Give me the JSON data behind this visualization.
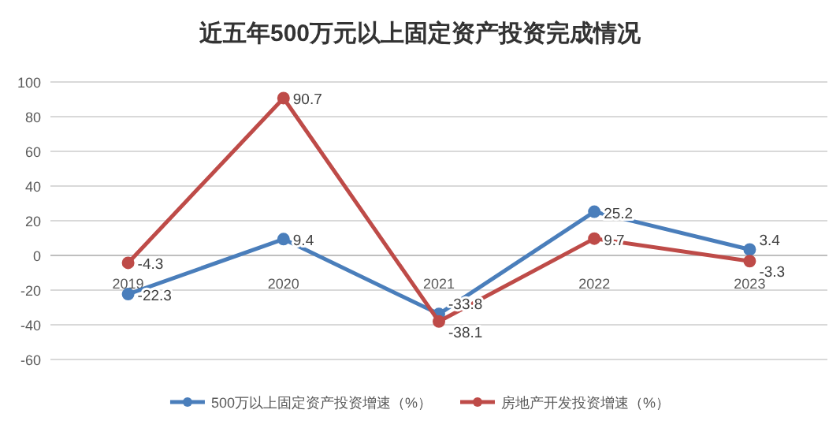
{
  "chart_data": {
    "type": "line",
    "title": "近五年500万元以上固定资产投资完成情况",
    "categories": [
      "2019",
      "2020",
      "2021",
      "2022",
      "2023"
    ],
    "series": [
      {
        "name": "500万以上固定资产投资增速（%）",
        "color": "#4a7ebb",
        "values": [
          -22.3,
          9.4,
          -33.8,
          25.2,
          3.4
        ]
      },
      {
        "name": "房地产开发投资增速（%）",
        "color": "#be4b48",
        "values": [
          -4.3,
          90.7,
          -38.1,
          9.7,
          -3.3
        ]
      }
    ],
    "ylim": [
      -60,
      100
    ],
    "yticks": [
      -60,
      -40,
      -20,
      0,
      20,
      40,
      60,
      80,
      100
    ],
    "grid": "y",
    "legend": "bottom",
    "marker": "circle",
    "line_style": "solid",
    "data_labels": true
  }
}
